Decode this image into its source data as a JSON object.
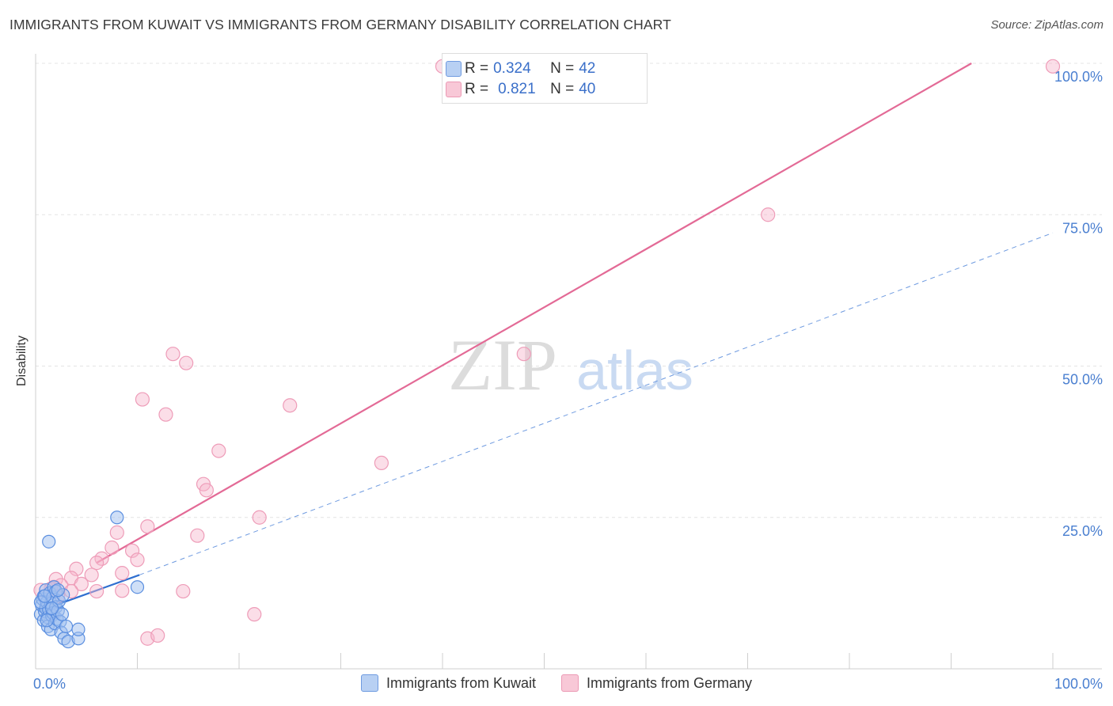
{
  "title": "IMMIGRANTS FROM KUWAIT VS IMMIGRANTS FROM GERMANY DISABILITY CORRELATION CHART",
  "source": "Source: ZipAtlas.com",
  "watermark": {
    "zip": "ZIP",
    "atlas": "atlas"
  },
  "colors": {
    "kuwait": "#5b8fe0",
    "germany": "#ec7aa0",
    "tick_label": "#4a7fd0"
  },
  "legend_top": {
    "rows": [
      {
        "r_label": "R =",
        "r_value": "0.324",
        "n_label": "N =",
        "n_value": "42"
      },
      {
        "r_label": "R =",
        "r_value": "0.821",
        "n_label": "N =",
        "n_value": "40"
      }
    ]
  },
  "legend_bottom": {
    "kuwait": "Immigrants from Kuwait",
    "germany": "Immigrants from Germany"
  },
  "chart_data": {
    "type": "scatter",
    "xlabel": "",
    "ylabel": "Disability",
    "xlim": [
      0,
      100
    ],
    "ylim": [
      0,
      100
    ],
    "x_tick_labels": [
      {
        "value": 0,
        "label": "0.0%"
      },
      {
        "value": 100,
        "label": "100.0%"
      }
    ],
    "y_tick_labels": [
      {
        "value": 25,
        "label": "25.0%"
      },
      {
        "value": 50,
        "label": "50.0%"
      },
      {
        "value": 75,
        "label": "75.0%"
      },
      {
        "value": 100,
        "label": "100.0%"
      }
    ],
    "grid": true,
    "legend_position": "top-center",
    "series": [
      {
        "name": "Immigrants from Kuwait",
        "r": 0.324,
        "n": 42,
        "trend": {
          "x": [
            0.3,
            10.2
          ],
          "y": [
            9.5,
            15.5
          ],
          "extended_x": [
            10.2,
            100
          ],
          "extended_y": [
            15.5,
            72
          ]
        },
        "points": [
          [
            0.5,
            9.0
          ],
          [
            0.6,
            10.5
          ],
          [
            0.7,
            11.5
          ],
          [
            0.8,
            12.0
          ],
          [
            0.8,
            8.0
          ],
          [
            0.9,
            9.5
          ],
          [
            1.0,
            10.0
          ],
          [
            1.0,
            13.0
          ],
          [
            1.1,
            11.0
          ],
          [
            1.2,
            8.5
          ],
          [
            1.2,
            7.0
          ],
          [
            1.3,
            9.8
          ],
          [
            1.4,
            12.5
          ],
          [
            1.5,
            10.8
          ],
          [
            1.5,
            6.5
          ],
          [
            1.6,
            8.8
          ],
          [
            1.7,
            11.8
          ],
          [
            1.7,
            9.2
          ],
          [
            1.8,
            13.5
          ],
          [
            1.9,
            7.5
          ],
          [
            2.0,
            10.2
          ],
          [
            2.0,
            12.8
          ],
          [
            2.1,
            8.2
          ],
          [
            2.2,
            9.6
          ],
          [
            2.3,
            11.2
          ],
          [
            2.4,
            7.8
          ],
          [
            2.5,
            6.0
          ],
          [
            2.6,
            9.0
          ],
          [
            2.7,
            12.2
          ],
          [
            2.8,
            5.0
          ],
          [
            3.0,
            7.0
          ],
          [
            3.2,
            4.5
          ],
          [
            1.3,
            21.0
          ],
          [
            8.0,
            25.0
          ],
          [
            10.0,
            13.5
          ],
          [
            4.2,
            5.0
          ],
          [
            4.2,
            6.5
          ],
          [
            0.5,
            11.0
          ],
          [
            0.9,
            12.0
          ],
          [
            1.6,
            10.0
          ],
          [
            2.2,
            13.0
          ],
          [
            1.1,
            8.0
          ]
        ]
      },
      {
        "name": "Immigrants from Germany",
        "r": 0.821,
        "n": 40,
        "trend": {
          "x": [
            6.0,
            92.0
          ],
          "y": [
            17.5,
            100
          ]
        },
        "points": [
          [
            40.0,
            99.5
          ],
          [
            100.0,
            99.5
          ],
          [
            72.0,
            75.0
          ],
          [
            13.5,
            52.0
          ],
          [
            14.8,
            50.5
          ],
          [
            48.0,
            52.0
          ],
          [
            10.5,
            44.5
          ],
          [
            12.8,
            42.0
          ],
          [
            25.0,
            43.5
          ],
          [
            18.0,
            36.0
          ],
          [
            34.0,
            34.0
          ],
          [
            16.5,
            30.5
          ],
          [
            16.8,
            29.5
          ],
          [
            22.0,
            25.0
          ],
          [
            11.0,
            23.5
          ],
          [
            8.0,
            22.5
          ],
          [
            15.9,
            22.0
          ],
          [
            7.5,
            20.0
          ],
          [
            9.5,
            19.5
          ],
          [
            10.0,
            18.0
          ],
          [
            6.5,
            18.2
          ],
          [
            6.0,
            17.5
          ],
          [
            4.0,
            16.5
          ],
          [
            8.5,
            15.8
          ],
          [
            5.5,
            15.5
          ],
          [
            3.5,
            15.0
          ],
          [
            2.0,
            14.8
          ],
          [
            4.5,
            14.0
          ],
          [
            2.5,
            13.8
          ],
          [
            1.5,
            13.2
          ],
          [
            0.5,
            13.0
          ],
          [
            3.5,
            12.8
          ],
          [
            6.0,
            12.8
          ],
          [
            8.5,
            12.9
          ],
          [
            14.5,
            12.8
          ],
          [
            21.5,
            9.0
          ],
          [
            11.0,
            5.0
          ],
          [
            12.0,
            5.5
          ],
          [
            1.8,
            13.5
          ],
          [
            2.2,
            12.0
          ]
        ]
      }
    ]
  }
}
